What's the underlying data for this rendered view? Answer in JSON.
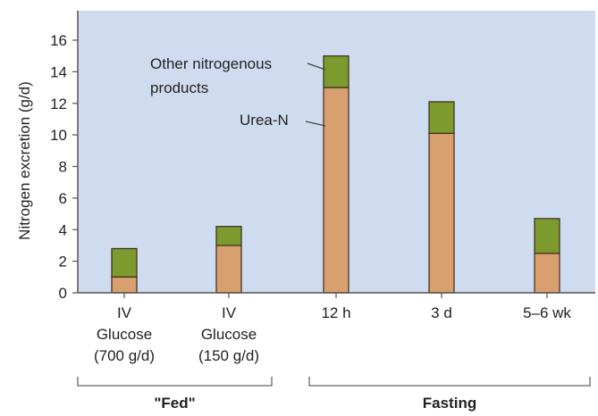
{
  "chart_data": {
    "type": "bar",
    "stacked": true,
    "title": "",
    "xlabel": "",
    "ylabel": "Nitrogen excretion (g/d)",
    "ylim": [
      0,
      17
    ],
    "yticks": [
      0,
      2,
      4,
      6,
      8,
      10,
      12,
      14,
      16
    ],
    "grid": false,
    "categories": [
      [
        "IV",
        "Glucose",
        "(700 g/d)"
      ],
      [
        "IV",
        "Glucose",
        "(150 g/d)"
      ],
      [
        "12 h"
      ],
      [
        "3 d"
      ],
      [
        "5–6 wk"
      ]
    ],
    "series": [
      {
        "name": "Urea-N",
        "color": "#d9a06f",
        "values": [
          1.0,
          3.0,
          13.0,
          10.1,
          2.5
        ]
      },
      {
        "name": "Other nitrogenous products",
        "color": "#7d9a2e",
        "values": [
          1.8,
          1.2,
          2.0,
          2.0,
          2.2
        ]
      }
    ],
    "annotations": {
      "other_label": [
        "Other nitrogenous",
        "products"
      ],
      "urea_label": "Urea-N"
    },
    "groups": [
      {
        "label": "\"Fed\"",
        "categories": [
          0,
          1
        ]
      },
      {
        "label": "Fasting",
        "categories": [
          2,
          3,
          4
        ]
      }
    ],
    "colors": {
      "plot_background": "#cfdcef",
      "axis": "#555555",
      "bar_outline": "#3a2a1a"
    }
  }
}
